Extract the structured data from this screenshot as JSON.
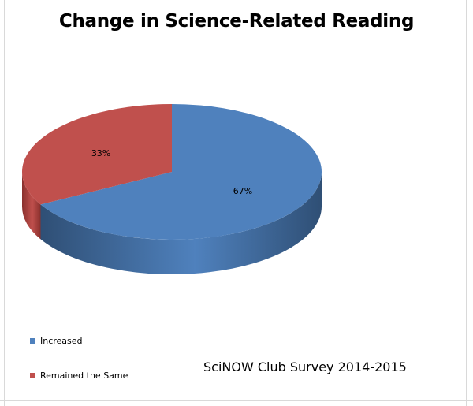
{
  "chart_data": {
    "type": "pie",
    "title": "Change in Science-Related Reading",
    "three_d": true,
    "slices": [
      {
        "label": "Increased",
        "value": 67,
        "data_label": "67%",
        "color": "#4f81bd",
        "side_color": "#2f4f75"
      },
      {
        "label": "Remained the Same",
        "value": 33,
        "data_label": "33%",
        "color": "#c0504d",
        "side_color": "#8a302d"
      }
    ],
    "legend": {
      "placement": "bottom-left",
      "entries": [
        "Increased",
        "Remained the Same"
      ]
    },
    "annotation": "SciNOW Club Survey 2014-2015"
  }
}
